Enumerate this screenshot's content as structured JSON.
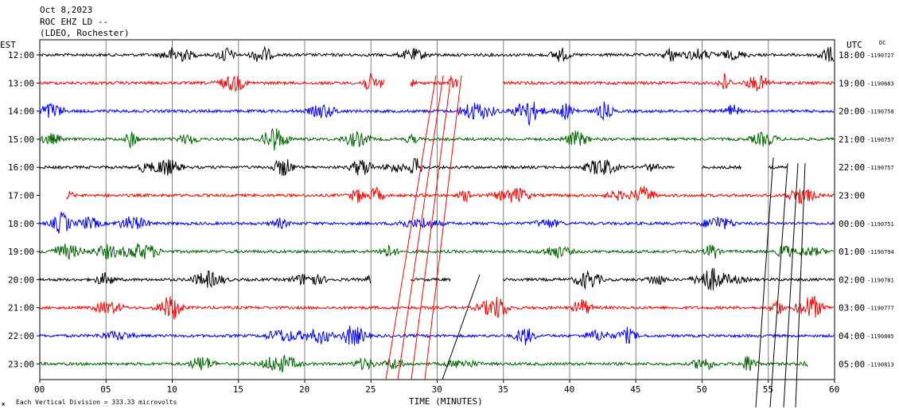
{
  "header": {
    "date": "Oct 8,2023",
    "station": "ROC EHZ LD --",
    "network": "(LDEO, Rochester)"
  },
  "left_tz": "EST",
  "right_tz": "UTC",
  "dc_label": "DC",
  "footer": {
    "scale_note": "Each Vertical Division =  333.33 microvolts",
    "corner_mark": "ж"
  },
  "chart_data": {
    "type": "line",
    "title": "",
    "xlabel": "TIME (MINUTES)",
    "xlim": [
      0,
      60
    ],
    "x_ticks": [
      "00",
      "05",
      "10",
      "15",
      "20",
      "25",
      "30",
      "35",
      "40",
      "45",
      "50",
      "55",
      "60"
    ],
    "grid": true,
    "trace_colors": [
      "#000000",
      "#ff0000",
      "#0000ff",
      "#006600"
    ],
    "rows": [
      {
        "est": "12:00",
        "utc": "18:00",
        "dc": "-1190727",
        "color": "#000000",
        "segments": [
          [
            0,
            60
          ]
        ]
      },
      {
        "est": "13:00",
        "utc": "19:00",
        "dc": "-1190683",
        "color": "#ff0000",
        "segments": [
          [
            0,
            26
          ],
          [
            28,
            31.6
          ],
          [
            35,
            60
          ]
        ]
      },
      {
        "est": "14:00",
        "utc": "20:00",
        "dc": "-1190758",
        "color": "#0000ff",
        "segments": [
          [
            0,
            60
          ]
        ]
      },
      {
        "est": "15:00",
        "utc": "21:00",
        "dc": "-1190757",
        "color": "#006600",
        "segments": [
          [
            0,
            60
          ]
        ]
      },
      {
        "est": "16:00",
        "utc": "22:00",
        "dc": "-1190757",
        "color": "#000000",
        "segments": [
          [
            0,
            48
          ],
          [
            50,
            53
          ],
          [
            55,
            56.5
          ]
        ]
      },
      {
        "est": "17:00",
        "utc": "23:00",
        "dc": "",
        "color": "#ff0000",
        "segments": [
          [
            2,
            60
          ]
        ]
      },
      {
        "est": "18:00",
        "utc": "00:00",
        "dc": "-1190751",
        "color": "#0000ff",
        "segments": [
          [
            0,
            60
          ]
        ]
      },
      {
        "est": "19:00",
        "utc": "01:00",
        "dc": "-1190794",
        "color": "#006600",
        "segments": [
          [
            0,
            60
          ]
        ]
      },
      {
        "est": "20:00",
        "utc": "02:00",
        "dc": "-1190781",
        "color": "#000000",
        "segments": [
          [
            0,
            25
          ],
          [
            28,
            31
          ],
          [
            35,
            60
          ]
        ]
      },
      {
        "est": "21:00",
        "utc": "03:00",
        "dc": "-1190777",
        "color": "#ff0000",
        "segments": [
          [
            0,
            60
          ]
        ]
      },
      {
        "est": "22:00",
        "utc": "04:00",
        "dc": "-1190805",
        "color": "#0000ff",
        "segments": [
          [
            0,
            60
          ]
        ]
      },
      {
        "est": "23:00",
        "utc": "05:00",
        "dc": "-1190813",
        "color": "#006600",
        "segments": [
          [
            0,
            58
          ]
        ]
      }
    ]
  }
}
